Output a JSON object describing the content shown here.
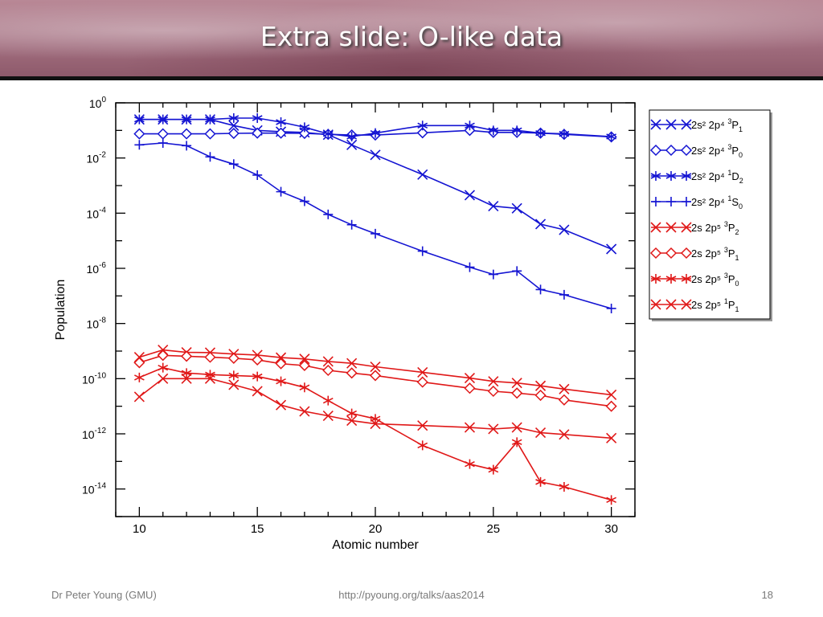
{
  "slide": {
    "title": "Extra slide: O-like data",
    "footer_left": "Dr Peter Young (GMU)",
    "footer_center": "http://pyoung.org/talks/aas2014",
    "page_number": "18"
  },
  "colors": {
    "blue": "#1414d2",
    "red": "#e01818"
  },
  "chart_data": {
    "type": "line",
    "xlabel": "Atomic number",
    "ylabel": "Population",
    "xlim": [
      9,
      31
    ],
    "ylim": [
      1e-15,
      1
    ],
    "y_scale": "log",
    "x_ticks": [
      10,
      15,
      20,
      25,
      30
    ],
    "y_tick_exponents": [
      0,
      -2,
      -4,
      -6,
      -8,
      -10,
      -12,
      -14
    ],
    "legend_position": "right-outside",
    "series": [
      {
        "label_main": "2s² 2p⁴ ",
        "label_sup": "3",
        "label_term": "P",
        "label_sub": "1",
        "color": "#1414d2",
        "marker": "x",
        "x": [
          10,
          11,
          12,
          13,
          14,
          15,
          16,
          17,
          18,
          19,
          20,
          22,
          24,
          25,
          26,
          27,
          28,
          30
        ],
        "y": [
          0.25,
          0.25,
          0.25,
          0.25,
          0.15,
          0.1,
          0.09,
          0.085,
          0.07,
          0.03,
          0.013,
          0.0025,
          0.00045,
          0.00018,
          0.00015,
          4e-05,
          2.5e-05,
          5e-06
        ]
      },
      {
        "label_main": "2s² 2p⁴ ",
        "label_sup": "3",
        "label_term": "P",
        "label_sub": "0",
        "color": "#1414d2",
        "marker": "diamond",
        "x": [
          10,
          11,
          12,
          13,
          14,
          15,
          16,
          17,
          18,
          19,
          20,
          22,
          24,
          25,
          26,
          27,
          28,
          30
        ],
        "y": [
          0.075,
          0.075,
          0.075,
          0.075,
          0.078,
          0.08,
          0.08,
          0.078,
          0.072,
          0.068,
          0.068,
          0.082,
          0.1,
          0.085,
          0.085,
          0.08,
          0.072,
          0.058
        ]
      },
      {
        "label_main": "2s² 2p⁴ ",
        "label_sup": "1",
        "label_term": "D",
        "label_sub": "2",
        "color": "#1414d2",
        "marker": "star",
        "x": [
          10,
          11,
          12,
          13,
          14,
          15,
          16,
          17,
          18,
          19,
          20,
          22,
          24,
          25,
          26,
          27,
          28,
          30
        ],
        "y": [
          0.25,
          0.25,
          0.25,
          0.25,
          0.28,
          0.28,
          0.2,
          0.13,
          0.075,
          0.06,
          0.08,
          0.15,
          0.15,
          0.1,
          0.1,
          0.08,
          0.075,
          0.06
        ]
      },
      {
        "label_main": "2s² 2p⁴ ",
        "label_sup": "1",
        "label_term": "S",
        "label_sub": "0",
        "color": "#1414d2",
        "marker": "plus",
        "x": [
          10,
          11,
          12,
          13,
          14,
          15,
          16,
          17,
          18,
          19,
          20,
          22,
          24,
          25,
          26,
          27,
          28,
          30
        ],
        "y": [
          0.03,
          0.035,
          0.028,
          0.011,
          0.006,
          0.0024,
          0.0006,
          0.00027,
          9e-05,
          3.8e-05,
          1.8e-05,
          4.2e-06,
          1.1e-06,
          6e-07,
          8e-07,
          1.7e-07,
          1.1e-07,
          3.5e-08
        ]
      },
      {
        "label_main": "2s 2p⁵ ",
        "label_sup": "3",
        "label_term": "P",
        "label_sub": "2",
        "color": "#e01818",
        "marker": "x",
        "x": [
          10,
          11,
          12,
          13,
          14,
          15,
          16,
          17,
          18,
          19,
          20,
          22,
          24,
          25,
          26,
          27,
          28,
          30
        ],
        "y": [
          6e-10,
          1.1e-09,
          9e-10,
          8.8e-10,
          7.8e-10,
          7.2e-10,
          5.8e-10,
          5.2e-10,
          4.2e-10,
          3.6e-10,
          2.7e-10,
          1.7e-10,
          1.05e-10,
          8e-11,
          7e-11,
          5.5e-11,
          4.2e-11,
          2.6e-11
        ]
      },
      {
        "label_main": "2s 2p⁵ ",
        "label_sup": "3",
        "label_term": "P",
        "label_sub": "1",
        "color": "#e01818",
        "marker": "diamond",
        "x": [
          10,
          11,
          12,
          13,
          14,
          15,
          16,
          17,
          18,
          19,
          20,
          22,
          24,
          25,
          26,
          27,
          28,
          30
        ],
        "y": [
          3.8e-10,
          7e-10,
          6.5e-10,
          6e-10,
          5.5e-10,
          4.8e-10,
          3.5e-10,
          3e-10,
          2e-10,
          1.6e-10,
          1.3e-10,
          7.5e-11,
          4.5e-11,
          3.5e-11,
          3e-11,
          2.5e-11,
          1.7e-11,
          1e-11
        ]
      },
      {
        "label_main": "2s 2p⁵ ",
        "label_sup": "3",
        "label_term": "P",
        "label_sub": "0",
        "color": "#e01818",
        "marker": "star",
        "x": [
          10,
          11,
          12,
          13,
          14,
          15,
          16,
          17,
          18,
          19,
          20,
          22,
          24,
          25,
          26,
          27,
          28,
          30
        ],
        "y": [
          1.1e-10,
          2.5e-10,
          1.6e-10,
          1.4e-10,
          1.3e-10,
          1.2e-10,
          8e-11,
          4.8e-11,
          1.6e-11,
          5.5e-12,
          3.5e-12,
          3.8e-13,
          8e-14,
          5e-14,
          5e-13,
          1.8e-14,
          1.2e-14,
          4e-15
        ]
      },
      {
        "label_main": "2s 2p⁵ ",
        "label_sup": "1",
        "label_term": "P",
        "label_sub": "1",
        "color": "#e01818",
        "marker": "x",
        "x": [
          10,
          11,
          12,
          13,
          14,
          15,
          16,
          17,
          18,
          19,
          20,
          22,
          24,
          25,
          26,
          27,
          28,
          30
        ],
        "y": [
          2.2e-11,
          1e-10,
          1e-10,
          1e-10,
          6e-11,
          3.5e-11,
          1.1e-11,
          6.5e-12,
          4.5e-12,
          3e-12,
          2.3e-12,
          2e-12,
          1.7e-12,
          1.5e-12,
          1.7e-12,
          1.1e-12,
          9.5e-13,
          7e-13
        ]
      }
    ]
  }
}
